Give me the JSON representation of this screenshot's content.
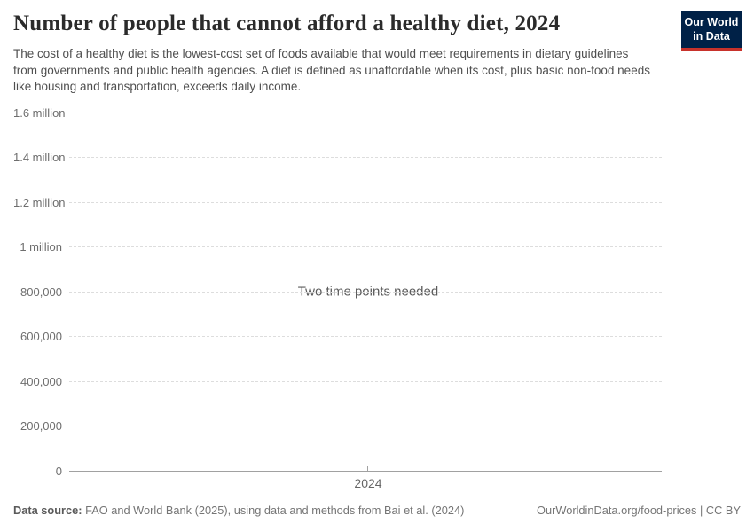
{
  "header": {
    "title": "Number of people that cannot afford a healthy diet, 2024",
    "subtitle": "The cost of a healthy diet is the lowest-cost set of foods available that would meet requirements in dietary guidelines from governments and public health agencies. A diet is defined as unaffordable when its cost, plus basic non-food needs like housing and transportation, exceeds daily income.",
    "logo_line1": "Our World",
    "logo_line2": "in Data"
  },
  "chart_data": {
    "type": "line",
    "title": "Number of people that cannot afford a healthy diet, 2024",
    "series": [],
    "empty_message": "Two time points needed",
    "x_axis": {
      "tick_labels": [
        "2024"
      ]
    },
    "y_axis": {
      "min": 0,
      "max": 1600000,
      "ticks": [
        {
          "value": 0,
          "label": "0"
        },
        {
          "value": 200000,
          "label": "200,000"
        },
        {
          "value": 400000,
          "label": "400,000"
        },
        {
          "value": 600000,
          "label": "600,000"
        },
        {
          "value": 800000,
          "label": "800,000"
        },
        {
          "value": 1000000,
          "label": "1 million"
        },
        {
          "value": 1200000,
          "label": "1.2 million"
        },
        {
          "value": 1400000,
          "label": "1.4 million"
        },
        {
          "value": 1600000,
          "label": "1.6 million"
        }
      ]
    },
    "grid": "horizontal-dashed",
    "legend": "none"
  },
  "footer": {
    "source_label": "Data source:",
    "source_text": " FAO and World Bank (2025), using data and methods from Bai et al. (2024)",
    "link_text": "OurWorldinData.org/food-prices | CC BY"
  },
  "colors": {
    "logo_background": "#002147",
    "logo_stripe": "#c8322b",
    "gridline": "#dddddd",
    "axis_line": "#a1a1a1",
    "title_text": "#2b2b2b",
    "subtitle_text": "#4f4f4f",
    "tick_text": "#6e6e6e",
    "footer_text": "#757575"
  }
}
